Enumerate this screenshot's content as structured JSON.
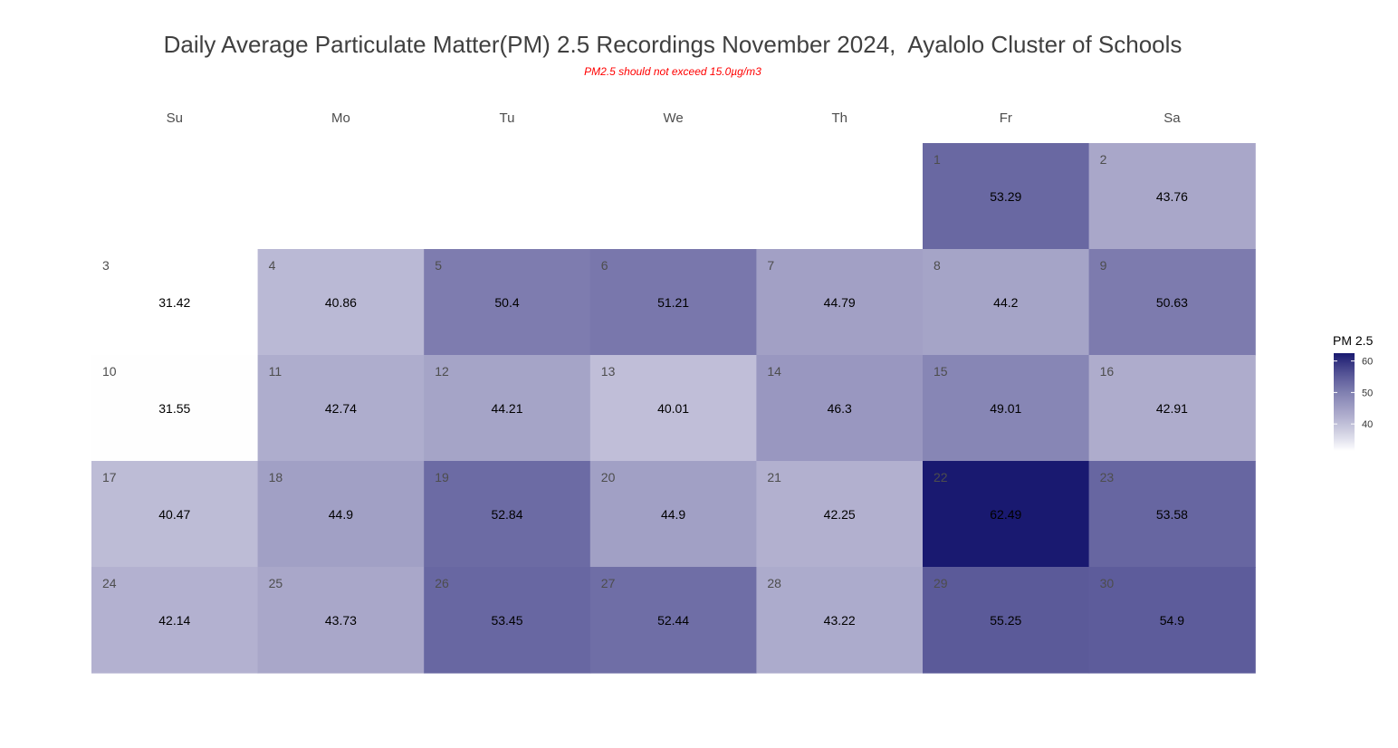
{
  "chart_data": {
    "type": "heatmap",
    "layout": "calendar",
    "title": "Daily Average Particulate Matter(PM) 2.5 Recordings November 2024,  Ayalolo Cluster of Schools",
    "subtitle": "PM2.5 should not exceed 15.0µg/m3",
    "weekdays": [
      "Su",
      "Mo",
      "Tu",
      "We",
      "Th",
      "Fr",
      "Sa"
    ],
    "first_weekday_index": 5,
    "days": [
      1,
      2,
      3,
      4,
      5,
      6,
      7,
      8,
      9,
      10,
      11,
      12,
      13,
      14,
      15,
      16,
      17,
      18,
      19,
      20,
      21,
      22,
      23,
      24,
      25,
      26,
      27,
      28,
      29,
      30
    ],
    "values": [
      53.29,
      43.76,
      31.42,
      40.86,
      50.4,
      51.21,
      44.79,
      44.2,
      50.63,
      31.55,
      42.74,
      44.21,
      40.01,
      46.3,
      49.01,
      42.91,
      40.47,
      44.9,
      52.84,
      44.9,
      42.25,
      62.49,
      53.58,
      42.14,
      43.73,
      53.45,
      52.44,
      43.22,
      55.25,
      54.9
    ],
    "value_labels": [
      "53.29",
      "43.76",
      "31.42",
      "40.86",
      "50.4",
      "51.21",
      "44.79",
      "44.2",
      "50.63",
      "31.55",
      "42.74",
      "44.21",
      "40.01",
      "46.3",
      "49.01",
      "42.91",
      "40.47",
      "44.9",
      "52.84",
      "44.9",
      "42.25",
      "62.49",
      "53.58",
      "42.14",
      "43.73",
      "53.45",
      "52.44",
      "43.22",
      "55.25",
      "54.9"
    ],
    "legend": {
      "title": "PM 2.5",
      "position": "right",
      "ticks": [
        40,
        50,
        60
      ],
      "range": [
        31.42,
        62.49
      ]
    },
    "color_scale": {
      "low": "#ffffff",
      "high": "#191970"
    },
    "grid": false
  }
}
